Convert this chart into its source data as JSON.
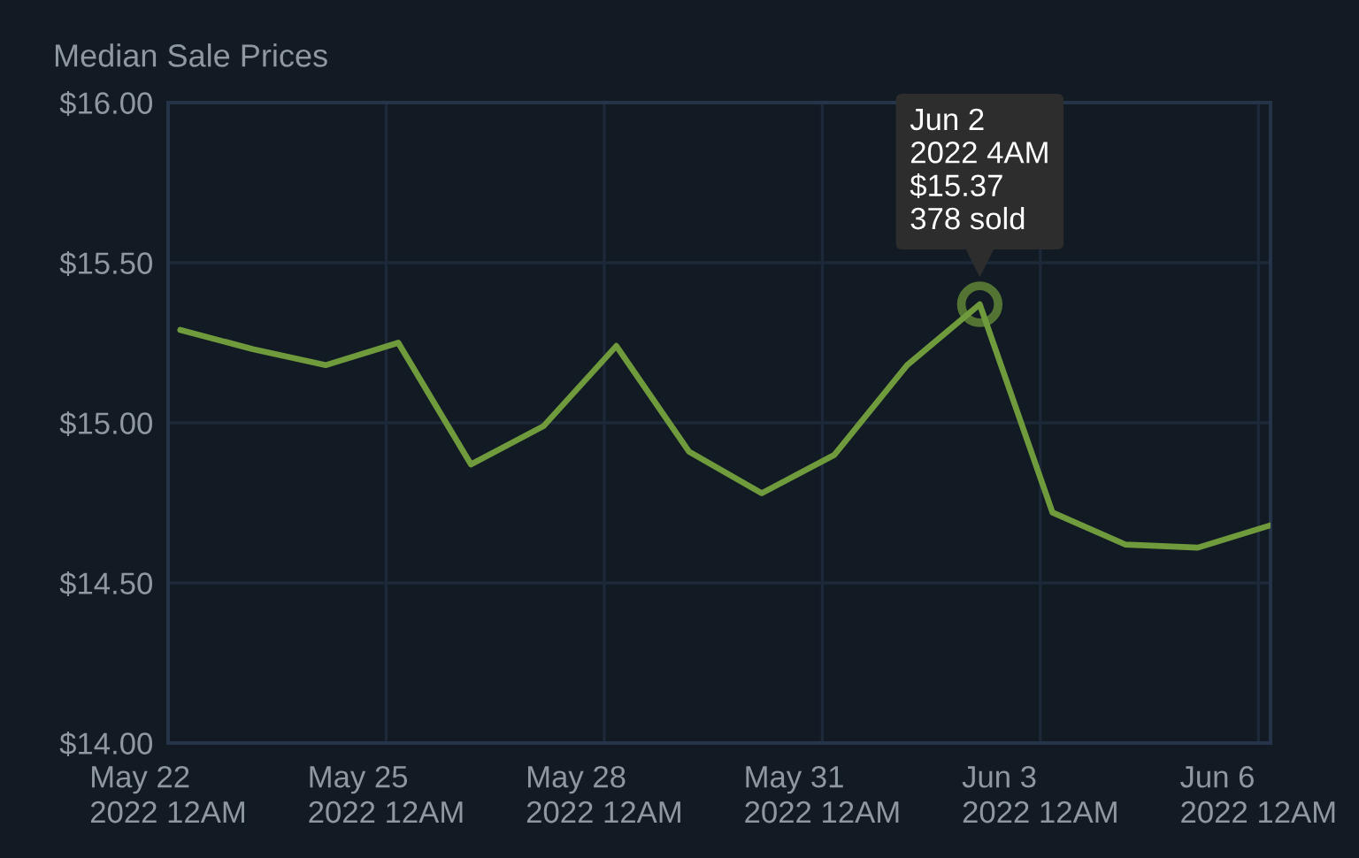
{
  "chart_data": {
    "type": "line",
    "title": "Median Sale Prices",
    "x": [
      "2022-05-22T04:00",
      "2022-05-23T04:00",
      "2022-05-24T04:00",
      "2022-05-25T04:00",
      "2022-05-26T04:00",
      "2022-05-27T04:00",
      "2022-05-28T04:00",
      "2022-05-29T04:00",
      "2022-05-30T04:00",
      "2022-05-31T04:00",
      "2022-06-01T04:00",
      "2022-06-02T04:00",
      "2022-06-03T04:00",
      "2022-06-04T04:00",
      "2022-06-05T04:00",
      "2022-06-06T04:00"
    ],
    "series": [
      {
        "color": "#709b3c",
        "values": [
          15.29,
          15.23,
          15.18,
          15.25,
          14.87,
          14.99,
          15.24,
          14.91,
          14.78,
          14.9,
          15.18,
          15.37,
          14.72,
          14.62,
          14.61,
          14.68
        ]
      }
    ],
    "xlim": [
      "2022-05-22T00:00",
      "2022-06-06T04:00"
    ],
    "xticks": [
      {
        "value": "2022-05-22",
        "label": "May 22\n2022 12AM"
      },
      {
        "value": "2022-05-25",
        "label": "May 25\n2022 12AM"
      },
      {
        "value": "2022-05-28",
        "label": "May 28\n2022 12AM"
      },
      {
        "value": "2022-05-31",
        "label": "May 31\n2022 12AM"
      },
      {
        "value": "2022-06-03",
        "label": "Jun 3\n2022 12AM"
      },
      {
        "value": "2022-06-06",
        "label": "Jun 6\n2022 12AM"
      }
    ],
    "ylim": [
      14,
      16
    ],
    "yticks": [
      {
        "value": 14,
        "label": "$14.00"
      },
      {
        "value": 14.5,
        "label": "$14.50"
      },
      {
        "value": 15,
        "label": "$15.00"
      },
      {
        "value": 15.5,
        "label": "$15.50"
      },
      {
        "value": 16,
        "label": "$16.00"
      }
    ],
    "grid": true,
    "line_style": "solid",
    "annotations": [
      {
        "text": "Jun 2\n2022 4AM\n$15.37\n378 sold",
        "x": "2022-06-02T04:00",
        "y": 15.37
      }
    ]
  }
}
